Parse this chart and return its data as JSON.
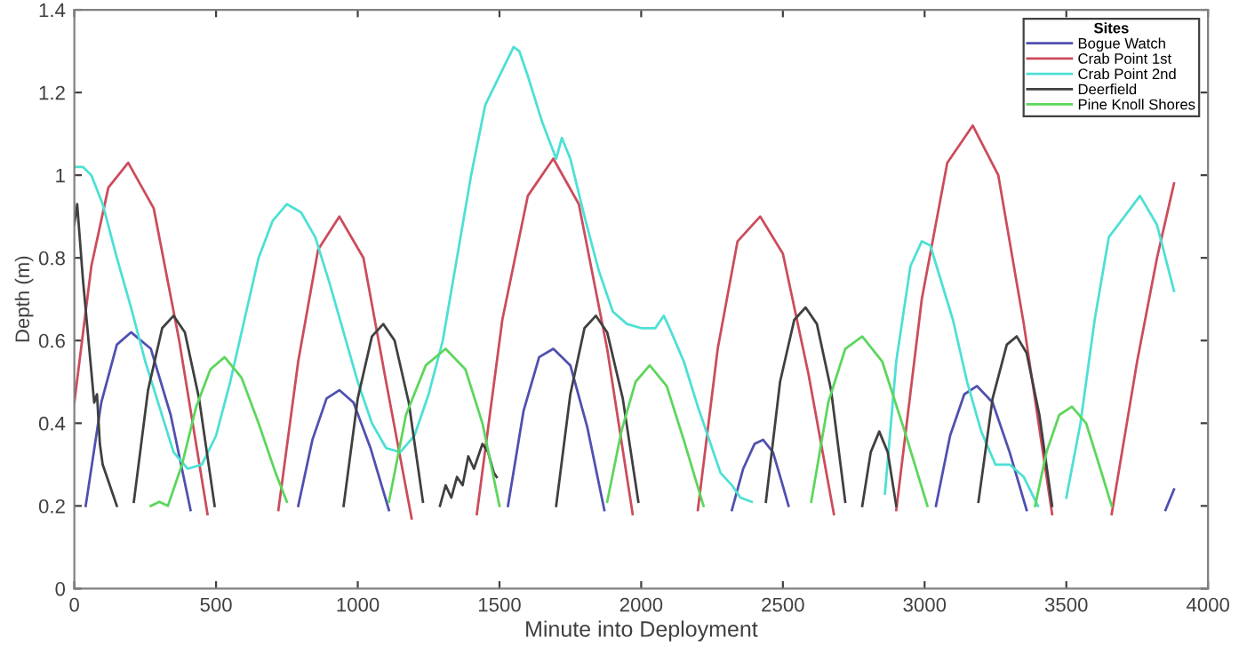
{
  "chart_data": {
    "type": "line",
    "xlabel": "Minute into Deployment",
    "ylabel": "Depth (m)",
    "legend_title": "Sites",
    "legend": "top right",
    "grid": false,
    "xlim": [
      0,
      4000
    ],
    "ylim": [
      0,
      1.4
    ],
    "xticks": [
      0,
      500,
      1000,
      1500,
      2000,
      2500,
      3000,
      3500,
      4000
    ],
    "yticks": [
      0,
      0.2,
      0.4,
      0.6,
      0.8,
      1,
      1.2,
      1.4
    ],
    "series": [
      {
        "name": "Bogue Watch",
        "color": "#5050b0",
        "x": [
          40,
          95,
          150,
          200,
          270,
          340,
          410,
          600,
          790,
          840,
          890,
          935,
          985,
          1045,
          1110,
          1300,
          1530,
          1585,
          1640,
          1690,
          1750,
          1810,
          1870,
          2100,
          2320,
          2360,
          2400,
          2430,
          2465,
          2495,
          2520,
          2800,
          3040,
          3090,
          3140,
          3185,
          3240,
          3300,
          3360,
          3600,
          3850,
          3880
        ],
        "values": [
          0.2,
          0.45,
          0.59,
          0.62,
          0.58,
          0.42,
          0.19,
          null,
          0.2,
          0.36,
          0.46,
          0.48,
          0.45,
          0.34,
          0.19,
          null,
          0.2,
          0.43,
          0.56,
          0.58,
          0.54,
          0.39,
          0.19,
          null,
          0.19,
          0.29,
          0.35,
          0.36,
          0.33,
          0.26,
          0.2,
          null,
          0.2,
          0.37,
          0.47,
          0.49,
          0.45,
          0.33,
          0.19,
          null,
          0.19,
          0.24
        ]
      },
      {
        "name": "Crab Point 1st",
        "color": "#cc4c5c",
        "x": [
          0,
          60,
          120,
          190,
          280,
          370,
          470,
          600,
          720,
          790,
          860,
          935,
          1020,
          1100,
          1190,
          1300,
          1420,
          1510,
          1600,
          1690,
          1780,
          1880,
          1970,
          2100,
          2200,
          2270,
          2340,
          2420,
          2500,
          2590,
          2680,
          2790,
          2900,
          2990,
          3080,
          3170,
          3260,
          3350,
          3450,
          3550,
          3660,
          3750,
          3820,
          3880
        ],
        "values": [
          0.45,
          0.78,
          0.97,
          1.03,
          0.92,
          0.6,
          0.18,
          null,
          0.19,
          0.55,
          0.82,
          0.9,
          0.8,
          0.5,
          0.17,
          null,
          0.18,
          0.65,
          0.95,
          1.04,
          0.93,
          0.58,
          0.18,
          null,
          0.19,
          0.58,
          0.84,
          0.9,
          0.81,
          0.52,
          0.18,
          null,
          0.19,
          0.7,
          1.03,
          1.12,
          1.0,
          0.64,
          0.18,
          null,
          0.18,
          0.55,
          0.8,
          0.98
        ]
      },
      {
        "name": "Crab Point 2nd",
        "color": "#4de0d4",
        "x": [
          0,
          30,
          60,
          100,
          150,
          200,
          250,
          300,
          350,
          400,
          450,
          500,
          550,
          600,
          650,
          700,
          750,
          800,
          850,
          900,
          950,
          1000,
          1050,
          1100,
          1150,
          1200,
          1250,
          1300,
          1350,
          1400,
          1450,
          1500,
          1550,
          1570,
          1600,
          1650,
          1700,
          1720,
          1750,
          1800,
          1850,
          1900,
          1950,
          2000,
          2050,
          2080,
          2100,
          2150,
          2200,
          2240,
          2280,
          2320,
          2350,
          2390,
          2600,
          2860,
          2900,
          2950,
          2990,
          3020,
          3100,
          3150,
          3200,
          3250,
          3300,
          3350,
          3400,
          3450,
          3500,
          3550,
          3600,
          3650,
          3760,
          3820,
          3880
        ],
        "values": [
          1.02,
          1.02,
          1.0,
          0.93,
          0.8,
          0.68,
          0.55,
          0.44,
          0.33,
          0.29,
          0.3,
          0.37,
          0.5,
          0.65,
          0.8,
          0.89,
          0.93,
          0.91,
          0.85,
          0.74,
          0.62,
          0.5,
          0.4,
          0.34,
          0.33,
          0.37,
          0.47,
          0.6,
          0.8,
          1.0,
          1.17,
          1.24,
          1.31,
          1.3,
          1.24,
          1.13,
          1.04,
          1.09,
          1.04,
          0.9,
          0.77,
          0.67,
          0.64,
          0.63,
          0.63,
          0.66,
          0.63,
          0.55,
          0.44,
          0.36,
          0.28,
          0.25,
          0.22,
          0.21,
          null,
          0.23,
          0.55,
          0.78,
          0.84,
          0.83,
          0.65,
          0.5,
          0.38,
          0.3,
          0.3,
          0.27,
          0.2,
          null,
          0.22,
          0.4,
          0.65,
          0.85,
          0.95,
          0.88,
          0.72
        ]
      },
      {
        "name": "Deerfield",
        "color": "#404040",
        "x": [
          0,
          10,
          30,
          50,
          70,
          80,
          90,
          100,
          140,
          150,
          180,
          210,
          260,
          310,
          350,
          390,
          440,
          495,
          700,
          950,
          1000,
          1050,
          1090,
          1130,
          1180,
          1230,
          1260,
          1290,
          1310,
          1330,
          1350,
          1370,
          1390,
          1410,
          1440,
          1460,
          1480,
          1490,
          1600,
          1700,
          1750,
          1800,
          1840,
          1880,
          1935,
          1990,
          2200,
          2440,
          2490,
          2540,
          2580,
          2620,
          2670,
          2720,
          2750,
          2780,
          2810,
          2840,
          2870,
          2900,
          3050,
          3190,
          3240,
          3290,
          3325,
          3360,
          3405,
          3450
        ],
        "values": [
          0.88,
          0.93,
          0.75,
          0.6,
          0.45,
          0.47,
          0.35,
          0.3,
          0.22,
          0.2,
          null,
          0.21,
          0.48,
          0.63,
          0.66,
          0.62,
          0.46,
          0.2,
          null,
          0.2,
          0.46,
          0.61,
          0.64,
          0.6,
          0.45,
          0.21,
          null,
          0.2,
          0.25,
          0.22,
          0.27,
          0.25,
          0.32,
          0.29,
          0.35,
          0.33,
          0.28,
          0.27,
          null,
          0.2,
          0.47,
          0.63,
          0.66,
          0.62,
          0.46,
          0.21,
          null,
          0.21,
          0.5,
          0.65,
          0.68,
          0.64,
          0.48,
          0.21,
          null,
          0.2,
          0.33,
          0.38,
          0.33,
          0.2,
          null,
          0.21,
          0.46,
          0.59,
          0.61,
          0.57,
          0.42,
          0.2
        ]
      },
      {
        "name": "Pine Knoll Shores",
        "color": "#5cd65c",
        "x": [
          270,
          300,
          330,
          380,
          430,
          480,
          530,
          590,
          650,
          710,
          750,
          900,
          1110,
          1170,
          1240,
          1310,
          1380,
          1440,
          1500,
          1700,
          1880,
          1930,
          1980,
          2030,
          2090,
          2150,
          2220,
          2400,
          2600,
          2660,
          2720,
          2780,
          2850,
          2930,
          3010,
          3200,
          3390,
          3430,
          3475,
          3520,
          3570,
          3620,
          3660
        ],
        "values": [
          0.2,
          0.21,
          0.2,
          0.3,
          0.44,
          0.53,
          0.56,
          0.51,
          0.4,
          0.28,
          0.21,
          null,
          0.21,
          0.42,
          0.54,
          0.58,
          0.53,
          0.4,
          0.2,
          null,
          0.21,
          0.38,
          0.5,
          0.54,
          0.49,
          0.36,
          0.2,
          null,
          0.21,
          0.45,
          0.58,
          0.61,
          0.55,
          0.38,
          0.2,
          null,
          0.2,
          0.33,
          0.42,
          0.44,
          0.4,
          0.29,
          0.2
        ]
      }
    ]
  }
}
